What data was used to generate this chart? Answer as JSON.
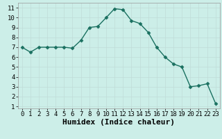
{
  "x": [
    0,
    1,
    2,
    3,
    4,
    5,
    6,
    7,
    8,
    9,
    10,
    11,
    12,
    13,
    14,
    15,
    16,
    17,
    18,
    19,
    20,
    21,
    22,
    23
  ],
  "y": [
    7.0,
    6.5,
    7.0,
    7.0,
    7.0,
    7.0,
    6.9,
    7.7,
    9.0,
    9.1,
    10.0,
    10.9,
    10.8,
    9.7,
    9.4,
    8.5,
    7.0,
    6.0,
    5.3,
    5.0,
    3.0,
    3.1,
    3.3,
    1.3
  ],
  "xlabel": "Humidex (Indice chaleur)",
  "xlim": [
    -0.5,
    23.5
  ],
  "ylim": [
    0.8,
    11.5
  ],
  "yticks": [
    1,
    2,
    3,
    4,
    5,
    6,
    7,
    8,
    9,
    10,
    11
  ],
  "xticks": [
    0,
    1,
    2,
    3,
    4,
    5,
    6,
    7,
    8,
    9,
    10,
    11,
    12,
    13,
    14,
    15,
    16,
    17,
    18,
    19,
    20,
    21,
    22,
    23
  ],
  "line_color": "#1a7060",
  "marker": "D",
  "marker_size": 2.5,
  "bg_color": "#cceee8",
  "grid_color": "#c0dcd8",
  "xlabel_fontsize": 8,
  "tick_fontsize": 6.5,
  "linewidth": 1.0
}
